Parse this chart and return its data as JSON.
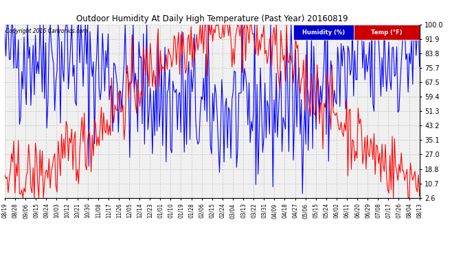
{
  "title": "Outdoor Humidity At Daily High Temperature (Past Year) 20160819",
  "copyright": "Copyright 2016 Cartronics.com",
  "legend_labels": [
    "Humidity (%)",
    "Temp (°F)"
  ],
  "legend_bg_humidity": "#0000cc",
  "legend_bg_temp": "#cc0000",
  "yticks": [
    2.6,
    10.7,
    18.8,
    27.0,
    35.1,
    43.2,
    51.3,
    59.4,
    67.5,
    75.7,
    83.8,
    91.9,
    100.0
  ],
  "xtick_labels": [
    "08/19",
    "08/28",
    "09/06",
    "09/15",
    "09/24",
    "10/03",
    "10/12",
    "10/21",
    "10/30",
    "11/08",
    "11/17",
    "11/26",
    "12/05",
    "12/14",
    "12/23",
    "01/01",
    "01/10",
    "01/19",
    "01/28",
    "02/06",
    "02/15",
    "02/24",
    "03/04",
    "03/13",
    "03/22",
    "03/31",
    "04/09",
    "04/18",
    "04/27",
    "05/06",
    "05/15",
    "05/24",
    "06/02",
    "06/11",
    "06/20",
    "06/29",
    "07/08",
    "07/17",
    "07/26",
    "08/04",
    "08/13"
  ],
  "ylim": [
    2.6,
    100.0
  ],
  "bg_color": "#ffffff",
  "plot_bg": "#f0f0f0",
  "grid_color": "#cccccc",
  "humidity_color": "#0000ff",
  "temp_color": "#ff0000",
  "line_width": 0.8
}
